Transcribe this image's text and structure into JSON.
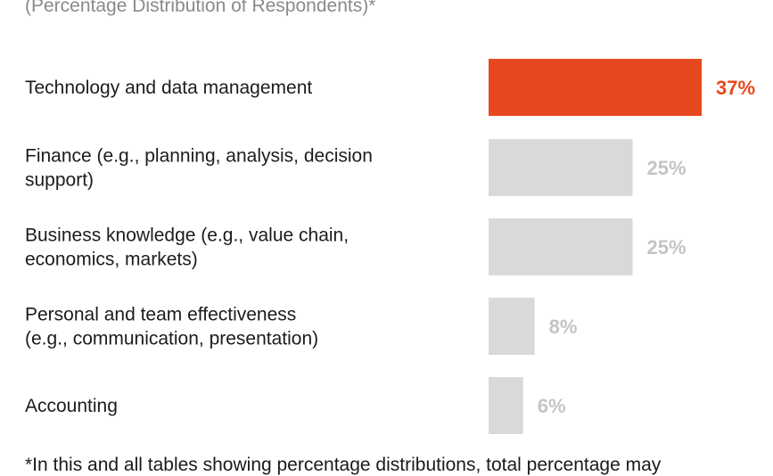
{
  "chart_data": {
    "type": "bar",
    "orientation": "horizontal",
    "subtitle": "(Percentage Distribution of Respondents)*",
    "categories": [
      [
        "Technology and data management"
      ],
      [
        "Finance (e.g., planning, analysis, decision",
        "support)"
      ],
      [
        "Business knowledge (e.g., value chain,",
        "economics, markets)"
      ],
      [
        "Personal and team effectiveness",
        "(e.g., communication, presentation)"
      ],
      [
        "Accounting"
      ]
    ],
    "values": [
      37,
      25,
      25,
      8,
      6
    ],
    "value_labels": [
      "37%",
      "25%",
      "25%",
      "8%",
      "6%"
    ],
    "highlight_index": 0,
    "colors": {
      "highlight_bar": "#e8481f",
      "highlight_label": "#e8481f",
      "bar": "#d9d9d9",
      "label": "#c4c4c4"
    },
    "xlim": [
      0,
      37
    ],
    "grid": false,
    "legend": "none",
    "footnote": "*In this and all tables showing percentage distributions, total percentage may"
  }
}
